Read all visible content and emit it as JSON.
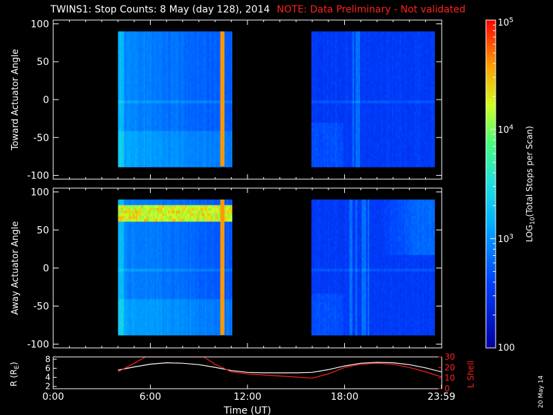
{
  "title": {
    "main": "TWINS1: Stop Counts:  8 May (day 128), 2014",
    "note": "NOTE: Data Preliminary - Not validated"
  },
  "datestamp": "20 May 14",
  "colors": {
    "background": "#000000",
    "foreground": "#ffffff",
    "note": "#ff2020",
    "lshell": "#ff2020",
    "radius": "#ffffff"
  },
  "chart_data": [
    {
      "type": "heatmap",
      "panel": "top",
      "ylabel": "Toward Actuator Angle",
      "ylim": [
        -105,
        105
      ],
      "yticks": [
        100,
        50,
        0,
        -50,
        -100
      ],
      "xlim_hours": [
        0,
        24
      ],
      "data_blocks_hours": [
        [
          4.0,
          11.0
        ],
        [
          15.95,
          23.5
        ]
      ],
      "angle_range": [
        -88,
        90
      ],
      "features": {
        "late_spike_hour": 10.45,
        "late_spike_level": 4.6,
        "high_angle_band": null
      }
    },
    {
      "type": "heatmap",
      "panel": "bottom",
      "ylabel": "Away Actuator Angle",
      "ylim": [
        -105,
        105
      ],
      "yticks": [
        100,
        50,
        0,
        -50,
        -100
      ],
      "xlim_hours": [
        0,
        24
      ],
      "data_blocks_hours": [
        [
          4.0,
          11.0
        ],
        [
          15.95,
          23.5
        ]
      ],
      "angle_range": [
        -88,
        90
      ],
      "features": {
        "late_spike_hour": 10.45,
        "late_spike_level": 4.6,
        "high_angle_band": [
          62,
          85
        ]
      }
    },
    {
      "type": "line",
      "panel": "orbit",
      "xlabel": "Time (UT)",
      "xticks_hours": [
        0,
        6,
        12,
        18,
        23.983
      ],
      "xtick_labels": [
        "0:00",
        "6:00",
        "12:00",
        "18:00",
        "23:59"
      ],
      "ylabel_left": "R (R",
      "ylabel_left_sub": "E",
      "ylabel_left_close": ")",
      "ylim_left": [
        1.5,
        8.5
      ],
      "yticks_left": [
        2,
        4,
        6,
        8
      ],
      "ylabel_right": "L Shell",
      "ylim_right": [
        0,
        30
      ],
      "yticks_right": [
        0,
        10,
        20,
        30
      ],
      "series": [
        {
          "axis": "left",
          "x": [
            4.0,
            5.0,
            6.0,
            7.0,
            8.0,
            9.0,
            10.0,
            11.0,
            12.0,
            13.0,
            14.0,
            15.0,
            16.0,
            17.0,
            18.0,
            19.0,
            20.0,
            21.0,
            22.0,
            23.0,
            24.0
          ],
          "values": [
            5.6,
            6.3,
            6.9,
            7.2,
            7.1,
            6.8,
            6.2,
            5.5,
            5.1,
            5.0,
            5.0,
            5.0,
            5.1,
            5.7,
            6.5,
            7.1,
            7.3,
            7.2,
            6.8,
            6.1,
            5.2
          ]
        },
        {
          "axis": "right",
          "x": [
            4.0,
            5.0,
            5.7,
            9.3,
            10.0,
            11.0,
            12.0,
            13.0,
            14.0,
            15.0,
            16.0,
            17.0,
            18.0,
            19.0,
            20.0,
            21.0,
            22.0,
            23.0,
            24.0
          ],
          "values": [
            16,
            24,
            30,
            30,
            23,
            16,
            14,
            13,
            12,
            11,
            10,
            14,
            20,
            23,
            24,
            23,
            20,
            16,
            11
          ]
        }
      ]
    }
  ],
  "colorbar": {
    "label_log": "LOG",
    "label_sub": "10",
    "label_rest": "(Total Stops per Scan)",
    "range_log": [
      2,
      5
    ],
    "ticks": [
      {
        "label": "100",
        "base": "",
        "exp": "",
        "log": 2
      },
      {
        "label": "",
        "base": "10",
        "exp": "3",
        "log": 3
      },
      {
        "label": "",
        "base": "10",
        "exp": "4",
        "log": 4
      },
      {
        "label": "",
        "base": "10",
        "exp": "5",
        "log": 5
      }
    ]
  }
}
